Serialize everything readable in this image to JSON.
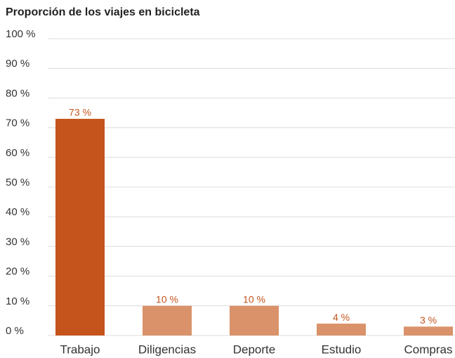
{
  "chart_data": {
    "type": "bar",
    "title": "Proporción de los viajes en bicicleta",
    "categories": [
      "Trabajo",
      "Diligencias",
      "Deporte",
      "Estudio",
      "Compras"
    ],
    "values": [
      73,
      10,
      10,
      4,
      3
    ],
    "value_labels": [
      "73 %",
      "10 %",
      "10 %",
      "4 %",
      "3 %"
    ],
    "colors": [
      "#c4541c",
      "#d9926a",
      "#d9926a",
      "#d9926a",
      "#d9926a"
    ],
    "ylim": [
      0,
      100
    ],
    "yticks": [
      {
        "value": 0,
        "label": "0 %"
      },
      {
        "value": 10,
        "label": "10 %"
      },
      {
        "value": 20,
        "label": "20 %"
      },
      {
        "value": 30,
        "label": "30 %"
      },
      {
        "value": 40,
        "label": "40 %"
      },
      {
        "value": 50,
        "label": "50 %"
      },
      {
        "value": 60,
        "label": "60 %"
      },
      {
        "value": 70,
        "label": "70 %"
      },
      {
        "value": 80,
        "label": "80 %"
      },
      {
        "value": 90,
        "label": "90 %"
      },
      {
        "value": 100,
        "label": "100 %"
      }
    ],
    "grid": true
  }
}
